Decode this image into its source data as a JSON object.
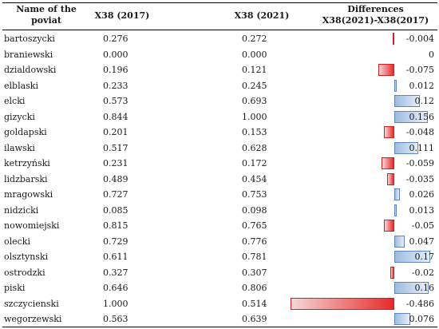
{
  "headers": {
    "name_line1": "Name of the",
    "name_line2": "poviat",
    "x2017": "X38 (2017)",
    "x2021": "X38 (2021)",
    "diff_line1": "Differences",
    "diff_line2": "X38(2021)-X38(2017)"
  },
  "bar_colors": {
    "positive": "#9fbce0",
    "negative": "#e62b2b"
  },
  "rows": [
    {
      "name": "bartoszycki",
      "x2017": "0.276",
      "x2021": "0.272",
      "diff": "-0.004",
      "value": -0.004
    },
    {
      "name": "braniewski",
      "x2017": "0.000",
      "x2021": "0.000",
      "diff": "0",
      "value": 0
    },
    {
      "name": "dzialdowski",
      "x2017": "0.196",
      "x2021": "0.121",
      "diff": "-0.075",
      "value": -0.075
    },
    {
      "name": "elblaski",
      "x2017": "0.233",
      "x2021": "0.245",
      "diff": "0.012",
      "value": 0.012
    },
    {
      "name": "elcki",
      "x2017": "0.573",
      "x2021": "0.693",
      "diff": "0.12",
      "value": 0.12
    },
    {
      "name": "gizycki",
      "x2017": "0.844",
      "x2021": "1.000",
      "diff": "0.156",
      "value": 0.156
    },
    {
      "name": "goldapski",
      "x2017": "0.201",
      "x2021": "0.153",
      "diff": "-0.048",
      "value": -0.048
    },
    {
      "name": "ilawski",
      "x2017": "0.517",
      "x2021": "0.628",
      "diff": "0.111",
      "value": 0.111
    },
    {
      "name": "ketrzyński",
      "x2017": "0.231",
      "x2021": "0.172",
      "diff": "-0.059",
      "value": -0.059
    },
    {
      "name": "lidzbarski",
      "x2017": "0.489",
      "x2021": "0.454",
      "diff": "-0.035",
      "value": -0.035
    },
    {
      "name": "mragowski",
      "x2017": "0.727",
      "x2021": "0.753",
      "diff": "0.026",
      "value": 0.026
    },
    {
      "name": "nidzicki",
      "x2017": "0.085",
      "x2021": "0.098",
      "diff": "0.013",
      "value": 0.013
    },
    {
      "name": "nowomiejski",
      "x2017": "0.815",
      "x2021": "0.765",
      "diff": "-0.05",
      "value": -0.05
    },
    {
      "name": "olecki",
      "x2017": "0.729",
      "x2021": "0.776",
      "diff": "0.047",
      "value": 0.047
    },
    {
      "name": "olsztynski",
      "x2017": "0.611",
      "x2021": "0.781",
      "diff": "0.17",
      "value": 0.17
    },
    {
      "name": "ostrodzki",
      "x2017": "0.327",
      "x2021": "0.307",
      "diff": "-0.02",
      "value": -0.02
    },
    {
      "name": "piski",
      "x2017": "0.646",
      "x2021": "0.806",
      "diff": "0.16",
      "value": 0.16
    },
    {
      "name": "szczycienski",
      "x2017": "1.000",
      "x2021": "0.514",
      "diff": "-0.486",
      "value": -0.486
    },
    {
      "name": "wegorzewski",
      "x2017": "0.563",
      "x2021": "0.639",
      "diff": "0.076",
      "value": 0.076
    }
  ]
}
